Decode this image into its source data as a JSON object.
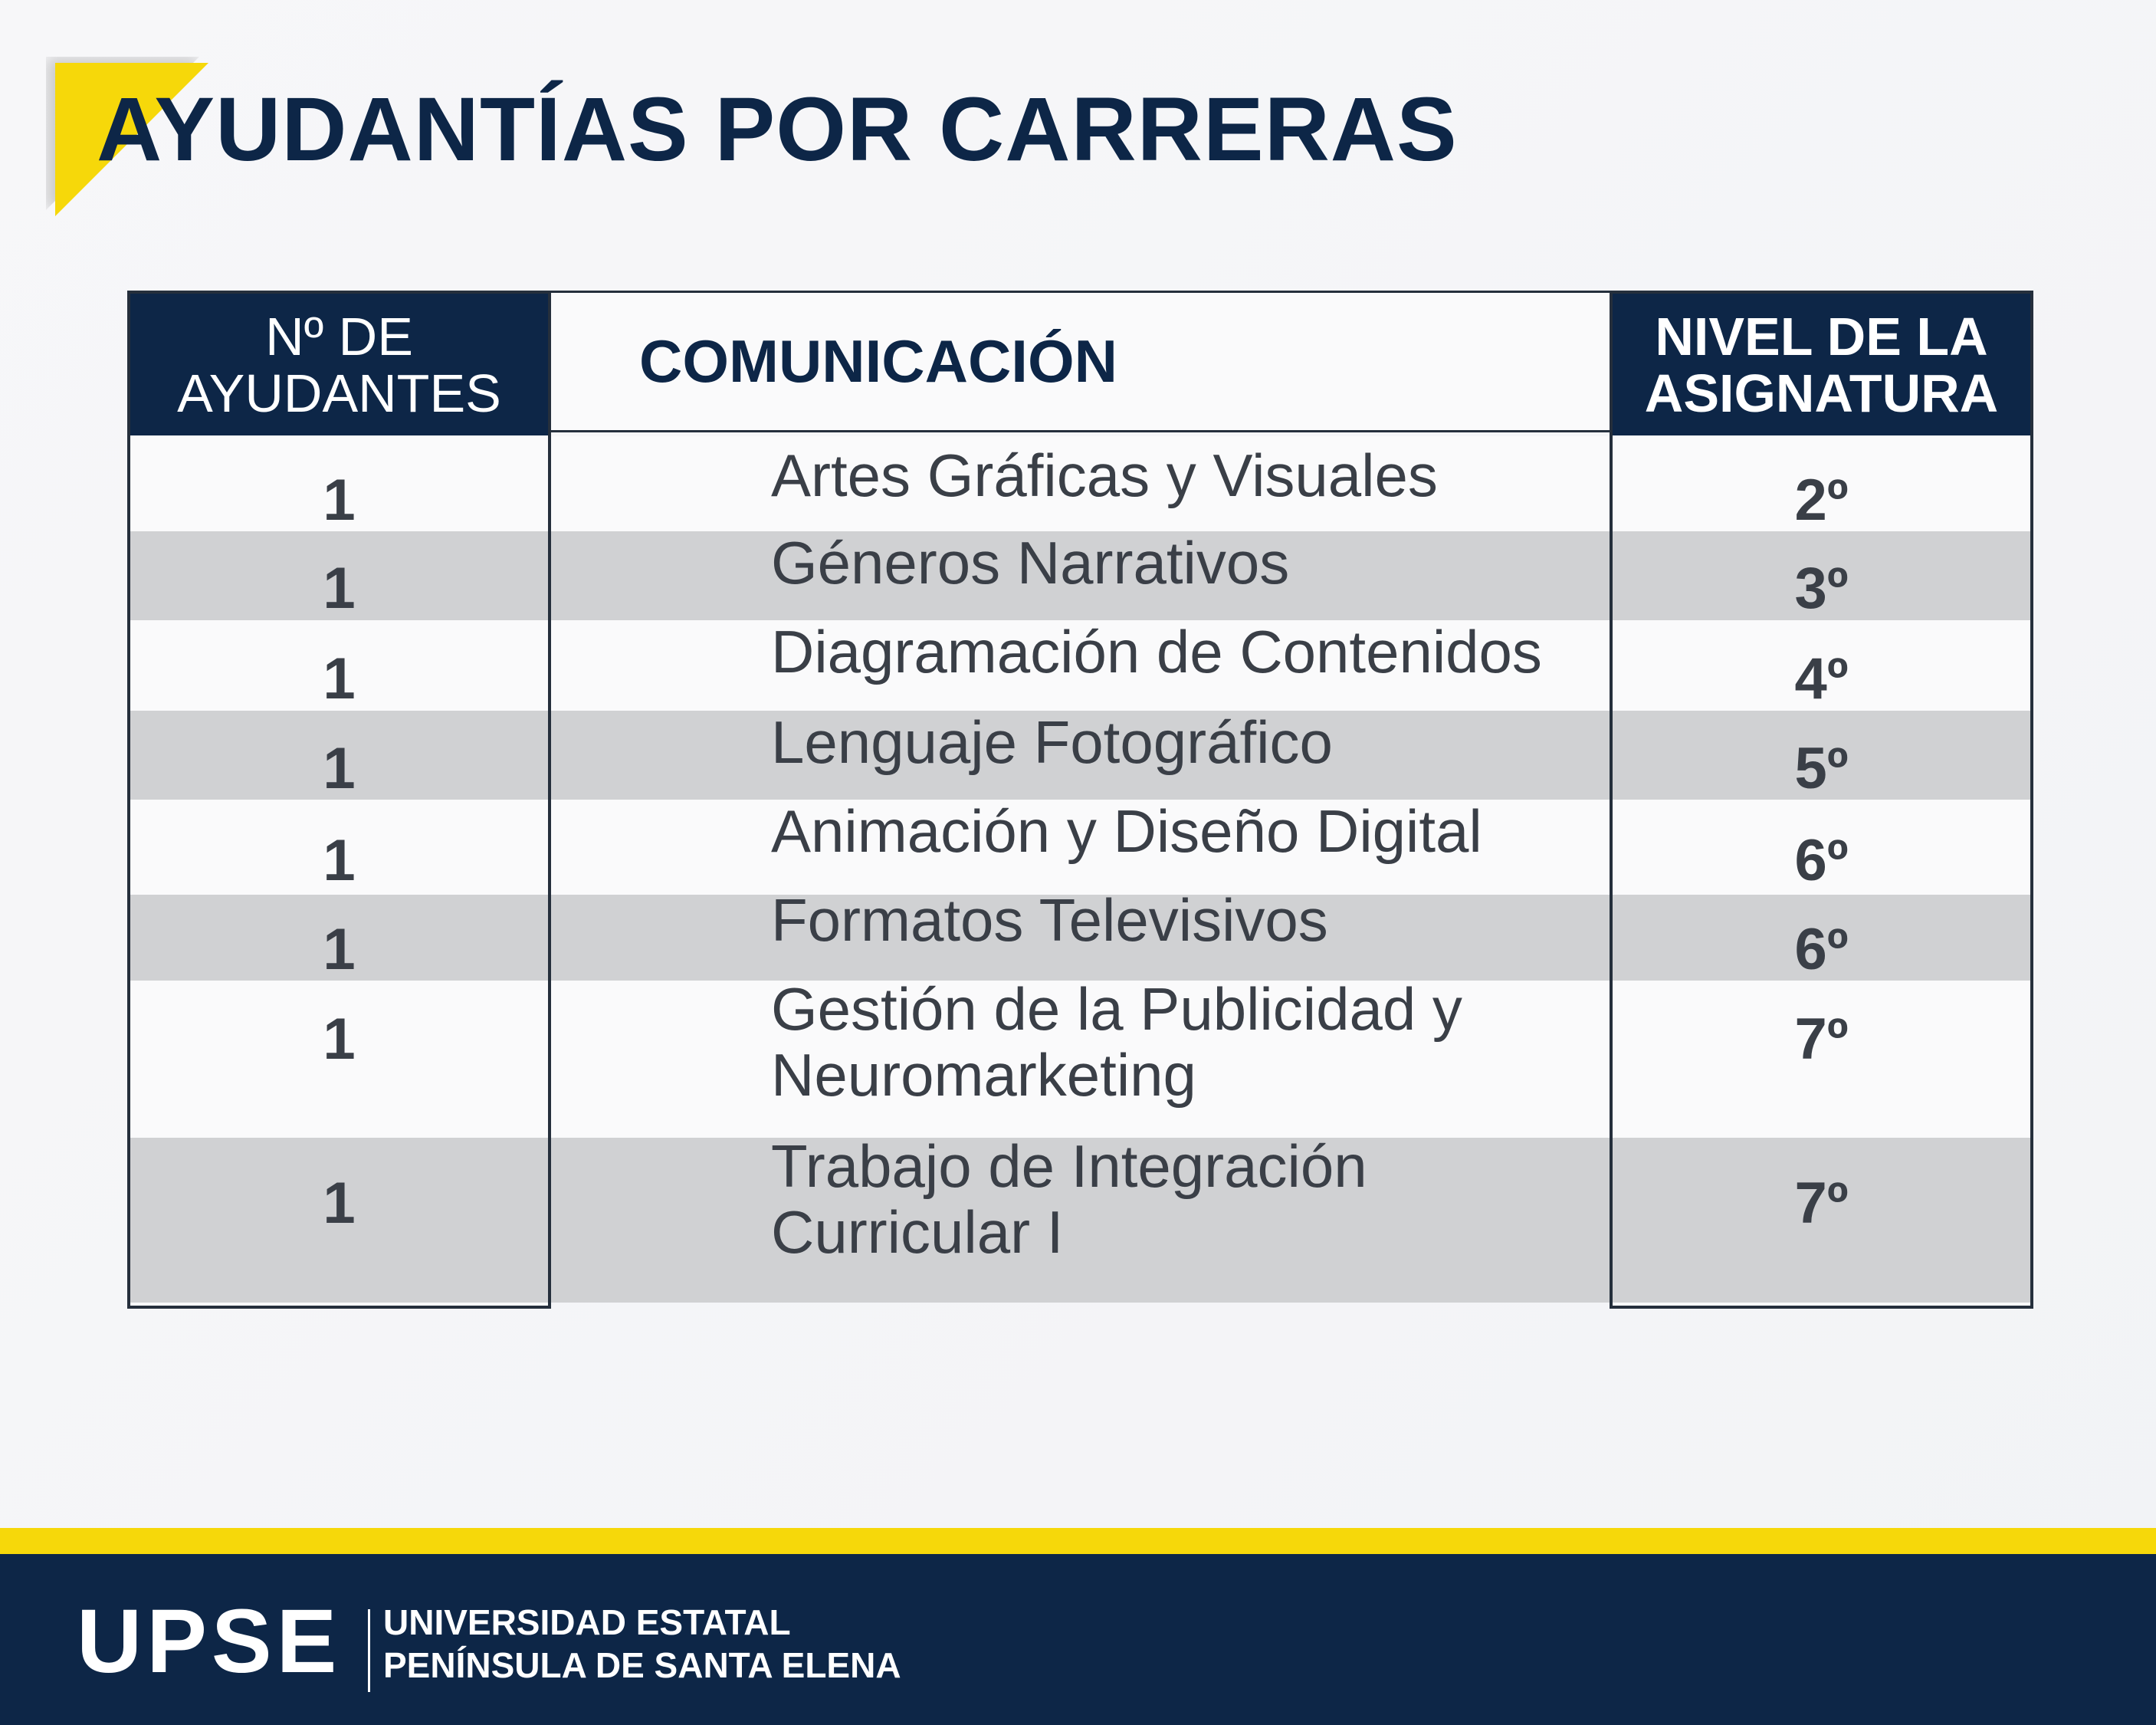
{
  "title": "AYUDANTÍAS POR CARRERAS",
  "table": {
    "header_left": [
      "Nº DE",
      "AYUDANTES"
    ],
    "header_mid": "COMUNICACIÓN",
    "header_right": [
      "NIVEL DE LA",
      "ASIGNATURA"
    ],
    "rows": [
      {
        "count": "1",
        "subject": [
          "Artes Gráficas y Visuales"
        ],
        "level": "2º"
      },
      {
        "count": "1",
        "subject": [
          "Géneros Narrativos"
        ],
        "level": "3º"
      },
      {
        "count": "1",
        "subject": [
          "Diagramación de Contenidos"
        ],
        "level": "4º"
      },
      {
        "count": "1",
        "subject": [
          "Lenguaje Fotográfico"
        ],
        "level": "5º"
      },
      {
        "count": "1",
        "subject": [
          "Animación y Diseño Digital"
        ],
        "level": "6º"
      },
      {
        "count": "1",
        "subject": [
          "Formatos Televisivos"
        ],
        "level": "6º"
      },
      {
        "count": "1",
        "subject": [
          "Gestión de la Publicidad y",
          "Neuromarketing"
        ],
        "level": "7º"
      },
      {
        "count": "1",
        "subject": [
          "Trabajo de Integración",
          "Curricular I"
        ],
        "level": "7º"
      }
    ]
  },
  "footer": {
    "logo": "UPSE",
    "line1": "UNIVERSIDAD ESTATAL",
    "line2": "PENÍNSULA DE SANTA ELENA"
  },
  "colors": {
    "navy": "#0d2647",
    "yellow": "#f6d80a",
    "row_gray": "#d0d1d3",
    "text": "#3a3f47"
  }
}
